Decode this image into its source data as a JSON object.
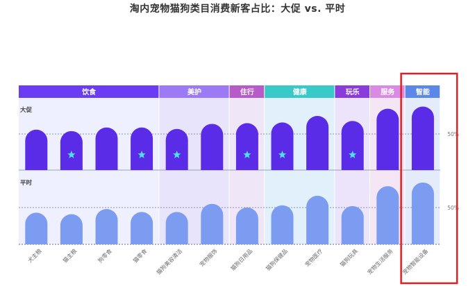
{
  "title": "淘内宠物猫狗类目消费新客占比：大促 vs. 平时",
  "chart_data": {
    "type": "bar",
    "title": "淘内宠物猫狗类目消费新客占比：大促 vs. 平时",
    "groups": [
      {
        "name": "饮食",
        "categories": 4,
        "color": "#6a3df2",
        "bg": "#eef0ff"
      },
      {
        "name": "美护",
        "categories": 2,
        "color": "#9c7af5",
        "bg": "#e7e4fb"
      },
      {
        "name": "住行",
        "categories": 1,
        "color": "#b75bc8",
        "bg": "#efe7f7"
      },
      {
        "name": "健康",
        "categories": 2,
        "color": "#39c9c9",
        "bg": "#e1f0fb"
      },
      {
        "name": "玩乐",
        "categories": 1,
        "color": "#8a3bdc",
        "bg": "#ece4fb"
      },
      {
        "name": "服务",
        "categories": 1,
        "color": "#d98be3",
        "bg": "#f5e6f6"
      },
      {
        "name": "智能",
        "categories": 1,
        "color": "#5b87e8",
        "bg": "#e4ecfb"
      }
    ],
    "categories": [
      "犬主粮",
      "猫主粮",
      "狗零食",
      "猫零食",
      "猫狗美容清洁",
      "宠物服饰",
      "猫狗日用品",
      "猫狗保健品",
      "宠物医疗",
      "猫狗玩具",
      "宠物生活服务",
      "宠物智能设备"
    ],
    "series": [
      {
        "name": "大促",
        "values": [
          56,
          54,
          59,
          59,
          57,
          64,
          65,
          66,
          75,
          68,
          85,
          88
        ],
        "star": [
          false,
          true,
          false,
          true,
          true,
          false,
          true,
          true,
          false,
          true,
          false,
          false
        ]
      },
      {
        "name": "平时",
        "values": [
          43,
          41,
          48,
          44,
          44,
          55,
          50,
          53,
          66,
          52,
          79,
          84
        ]
      }
    ],
    "reference_label": "50%",
    "ylim": [
      0,
      100
    ],
    "highlight": "宠物智能设备",
    "highlight_color": "#e02020",
    "bar_colors": {
      "大促": "#5b2ce8",
      "平时": "#7b9cf0",
      "star": "#4ee0ef"
    }
  }
}
